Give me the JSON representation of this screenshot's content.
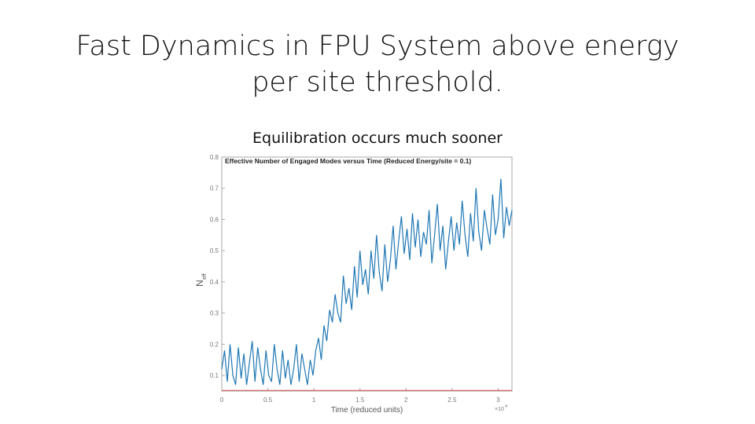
{
  "slide": {
    "title_line1": "Fast Dynamics in FPU System above energy",
    "title_line2": "per site threshold.",
    "subtitle": "Equilibration occurs much sooner"
  },
  "chart_data": {
    "type": "line",
    "title": "Effective Number of Engaged Modes versus Time (Reduced Energy/site = 0.1)",
    "xlabel": "Time (reduced units)",
    "ylabel": "N",
    "ylabel_subscript": "eff",
    "x_multiplier": "×10",
    "x_multiplier_exp": "4",
    "xlim": [
      0,
      3.15
    ],
    "ylim": [
      0.05,
      0.8
    ],
    "xticks": [
      "0",
      "0.5",
      "1",
      "1.5",
      "2",
      "2.5",
      "3"
    ],
    "yticks": [
      "0.1",
      "0.2",
      "0.3",
      "0.4",
      "0.5",
      "0.6",
      "0.7",
      "0.8"
    ],
    "grid": false,
    "colors": {
      "series": "#1f77b4",
      "baseline": "#d9534f",
      "axes": "#aaaaaa",
      "ticklabels": "#777777"
    },
    "series": [
      {
        "color": "#1f77b4",
        "x": [
          0,
          0.03,
          0.06,
          0.09,
          0.12,
          0.15,
          0.18,
          0.21,
          0.24,
          0.27,
          0.3,
          0.33,
          0.36,
          0.39,
          0.42,
          0.45,
          0.48,
          0.51,
          0.54,
          0.57,
          0.6,
          0.63,
          0.66,
          0.69,
          0.72,
          0.75,
          0.78,
          0.81,
          0.84,
          0.87,
          0.9,
          0.93,
          0.96,
          0.99,
          1.02,
          1.05,
          1.08,
          1.11,
          1.14,
          1.17,
          1.2,
          1.23,
          1.26,
          1.29,
          1.32,
          1.35,
          1.38,
          1.41,
          1.44,
          1.47,
          1.5,
          1.53,
          1.56,
          1.59,
          1.62,
          1.65,
          1.68,
          1.71,
          1.74,
          1.77,
          1.8,
          1.83,
          1.86,
          1.89,
          1.92,
          1.95,
          1.98,
          2.01,
          2.04,
          2.07,
          2.1,
          2.13,
          2.16,
          2.19,
          2.22,
          2.25,
          2.28,
          2.31,
          2.34,
          2.37,
          2.4,
          2.43,
          2.46,
          2.49,
          2.52,
          2.55,
          2.58,
          2.61,
          2.64,
          2.67,
          2.7,
          2.73,
          2.76,
          2.79,
          2.82,
          2.85,
          2.88,
          2.91,
          2.94,
          2.97,
          3.0,
          3.03,
          3.06,
          3.09,
          3.12,
          3.15
        ],
        "y": [
          0.12,
          0.18,
          0.08,
          0.2,
          0.1,
          0.07,
          0.19,
          0.09,
          0.17,
          0.07,
          0.14,
          0.21,
          0.08,
          0.19,
          0.12,
          0.07,
          0.18,
          0.1,
          0.08,
          0.2,
          0.12,
          0.07,
          0.18,
          0.09,
          0.15,
          0.07,
          0.12,
          0.2,
          0.08,
          0.17,
          0.12,
          0.07,
          0.15,
          0.1,
          0.18,
          0.22,
          0.15,
          0.26,
          0.21,
          0.31,
          0.27,
          0.36,
          0.3,
          0.27,
          0.42,
          0.33,
          0.38,
          0.31,
          0.45,
          0.35,
          0.5,
          0.39,
          0.44,
          0.36,
          0.5,
          0.41,
          0.55,
          0.43,
          0.37,
          0.52,
          0.4,
          0.47,
          0.58,
          0.44,
          0.53,
          0.61,
          0.49,
          0.57,
          0.47,
          0.62,
          0.51,
          0.6,
          0.48,
          0.56,
          0.52,
          0.63,
          0.46,
          0.55,
          0.65,
          0.5,
          0.58,
          0.44,
          0.53,
          0.61,
          0.5,
          0.59,
          0.52,
          0.66,
          0.55,
          0.48,
          0.62,
          0.53,
          0.7,
          0.56,
          0.5,
          0.63,
          0.57,
          0.52,
          0.68,
          0.55,
          0.6,
          0.73,
          0.54,
          0.64,
          0.58,
          0.63
        ]
      },
      {
        "color": "#d9534f",
        "x": [
          0,
          3.15
        ],
        "y": [
          0.052,
          0.052
        ]
      }
    ]
  }
}
